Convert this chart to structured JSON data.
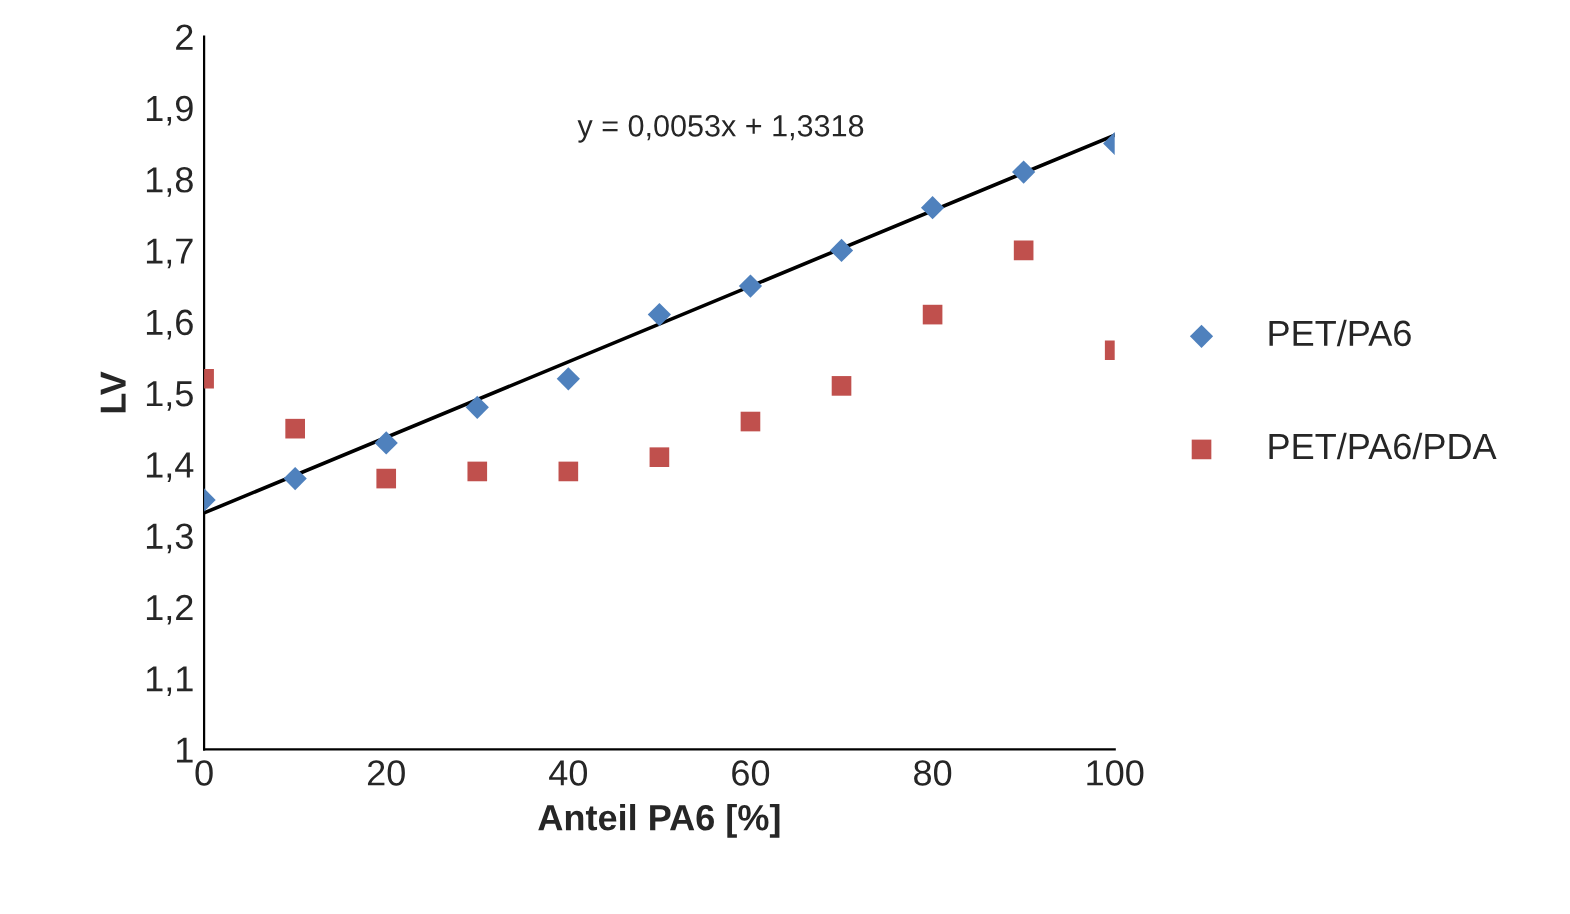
{
  "chart_data": {
    "type": "scatter",
    "xlabel": "Anteil PA6 [%]",
    "ylabel": "LV",
    "x": [
      0,
      10,
      20,
      30,
      40,
      50,
      60,
      70,
      80,
      90,
      100
    ],
    "series": [
      {
        "name": "PET/PA6",
        "color": "#4f81bd",
        "marker": "diamond",
        "values": [
          1.35,
          1.38,
          1.43,
          1.48,
          1.52,
          1.61,
          1.65,
          1.7,
          1.76,
          1.81,
          1.85
        ]
      },
      {
        "name": "PET/PA6/PDA",
        "color": "#c0504d",
        "marker": "square",
        "values": [
          1.52,
          1.45,
          1.38,
          1.39,
          1.39,
          1.41,
          1.46,
          1.51,
          1.61,
          1.7,
          1.56
        ]
      },
      {
        "type": "line",
        "color": "#000000",
        "x": [
          0,
          100
        ],
        "values": [
          1.3318,
          1.8618
        ]
      }
    ],
    "annotations": [
      "y = 0,0053x + 1,3318"
    ],
    "xlim": [
      0,
      100
    ],
    "xticks": [
      0,
      20,
      40,
      60,
      80,
      100
    ],
    "ylim": [
      1,
      2
    ],
    "yticks": [
      1,
      {
        "value": 1.1,
        "label": "1,1"
      },
      {
        "value": 1.2,
        "label": "1,2"
      },
      {
        "value": 1.3,
        "label": "1,3"
      },
      {
        "value": 1.4,
        "label": "1,4"
      },
      {
        "value": 1.5,
        "label": "1,5"
      },
      {
        "value": 1.6,
        "label": "1,6"
      },
      {
        "value": 1.7,
        "label": "1,7"
      },
      {
        "value": 1.8,
        "label": "1,8"
      },
      {
        "value": 1.9,
        "label": "1,9"
      },
      2
    ],
    "grid": false,
    "legend": "right"
  }
}
